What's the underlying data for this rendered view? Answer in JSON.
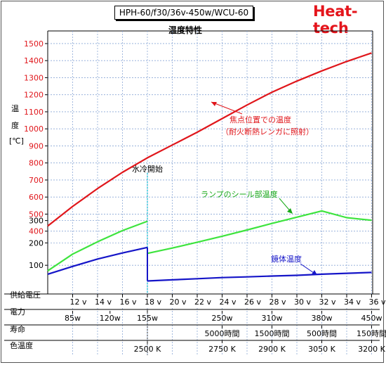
{
  "header": {
    "model": "HPH-60/f30/36v-450w/WCU-60",
    "brand": "Heat-tech",
    "subtitle": "温度特性"
  },
  "chart_data": {
    "type": "line",
    "ylabel_lines": [
      "温",
      "度",
      "[℃]"
    ],
    "y_ticks_upper": [
      1500,
      1400,
      1300,
      1200,
      1100,
      1000,
      900,
      800,
      700,
      600,
      500,
      400
    ],
    "y_ticks_lower": [
      300,
      200,
      100
    ],
    "row_labels": {
      "voltage": "供給電圧",
      "power": "電力",
      "life": "寿命",
      "color_temp": "色温度"
    },
    "voltage_ticks": [
      "12 v",
      "14 v",
      "16 v",
      "18 v",
      "20 v",
      "22 v",
      "24 v",
      "26 v",
      "28 v",
      "30 v",
      "32 v",
      "34 v",
      "36 v"
    ],
    "power_ticks": [
      {
        "v": 12,
        "label": "85w"
      },
      {
        "v": 15,
        "label": "120w"
      },
      {
        "v": 18,
        "label": "155w"
      },
      {
        "v": 24,
        "label": "250w"
      },
      {
        "v": 28,
        "label": "310w"
      },
      {
        "v": 32,
        "label": "380w"
      },
      {
        "v": 36,
        "label": "450w"
      }
    ],
    "life_ticks": [
      {
        "v": 24,
        "label": "5000時間"
      },
      {
        "v": 28,
        "label": "1500時間"
      },
      {
        "v": 32,
        "label": "500時間"
      },
      {
        "v": 36,
        "label": "150時間"
      }
    ],
    "color_temp_ticks": [
      {
        "v": 18,
        "label": "2500 K"
      },
      {
        "v": 24,
        "label": "2750 K"
      },
      {
        "v": 28,
        "label": "2900 K"
      },
      {
        "v": 32,
        "label": "3050 K"
      },
      {
        "v": 36,
        "label": "3200 K"
      }
    ],
    "water_cooling_voltage": 18,
    "annotations": {
      "water": "水冷開始",
      "red_line1": "焦点位置での温度",
      "red_line2": "（耐火断熱レンガに照射）",
      "green": "ランプのシール部温度",
      "blue": "鏡体温度"
    },
    "series": [
      {
        "key": "focus",
        "color": "#e0161b",
        "x": [
          10,
          12,
          14,
          16,
          18,
          20,
          22,
          24,
          26,
          28,
          30,
          32,
          34,
          36
        ],
        "y": [
          430,
          545,
          650,
          745,
          830,
          905,
          980,
          1060,
          1140,
          1215,
          1280,
          1340,
          1395,
          1445
        ]
      },
      {
        "key": "seal_before",
        "color": "#3ee43e",
        "x": [
          10,
          12,
          14,
          16,
          18
        ],
        "y": [
          75,
          150,
          205,
          255,
          297
        ]
      },
      {
        "key": "seal_after",
        "color": "#3ee43e",
        "x": [
          18,
          20,
          22,
          24,
          26,
          28,
          30,
          32,
          34,
          36
        ],
        "y": [
          153,
          177,
          203,
          230,
          258,
          287,
          315,
          343,
          369,
          375
        ]
      },
      {
        "key": "body_before",
        "color": "#1515c8",
        "x": [
          10,
          12,
          14,
          16,
          18
        ],
        "y": [
          60,
          95,
          128,
          155,
          180
        ]
      },
      {
        "key": "body_after",
        "color": "#1515c8",
        "x": [
          18,
          20,
          22,
          24,
          26,
          28,
          30,
          32,
          34,
          36
        ],
        "y": [
          30,
          35,
          40,
          45,
          48,
          52,
          55,
          60,
          64,
          68
        ]
      }
    ]
  }
}
